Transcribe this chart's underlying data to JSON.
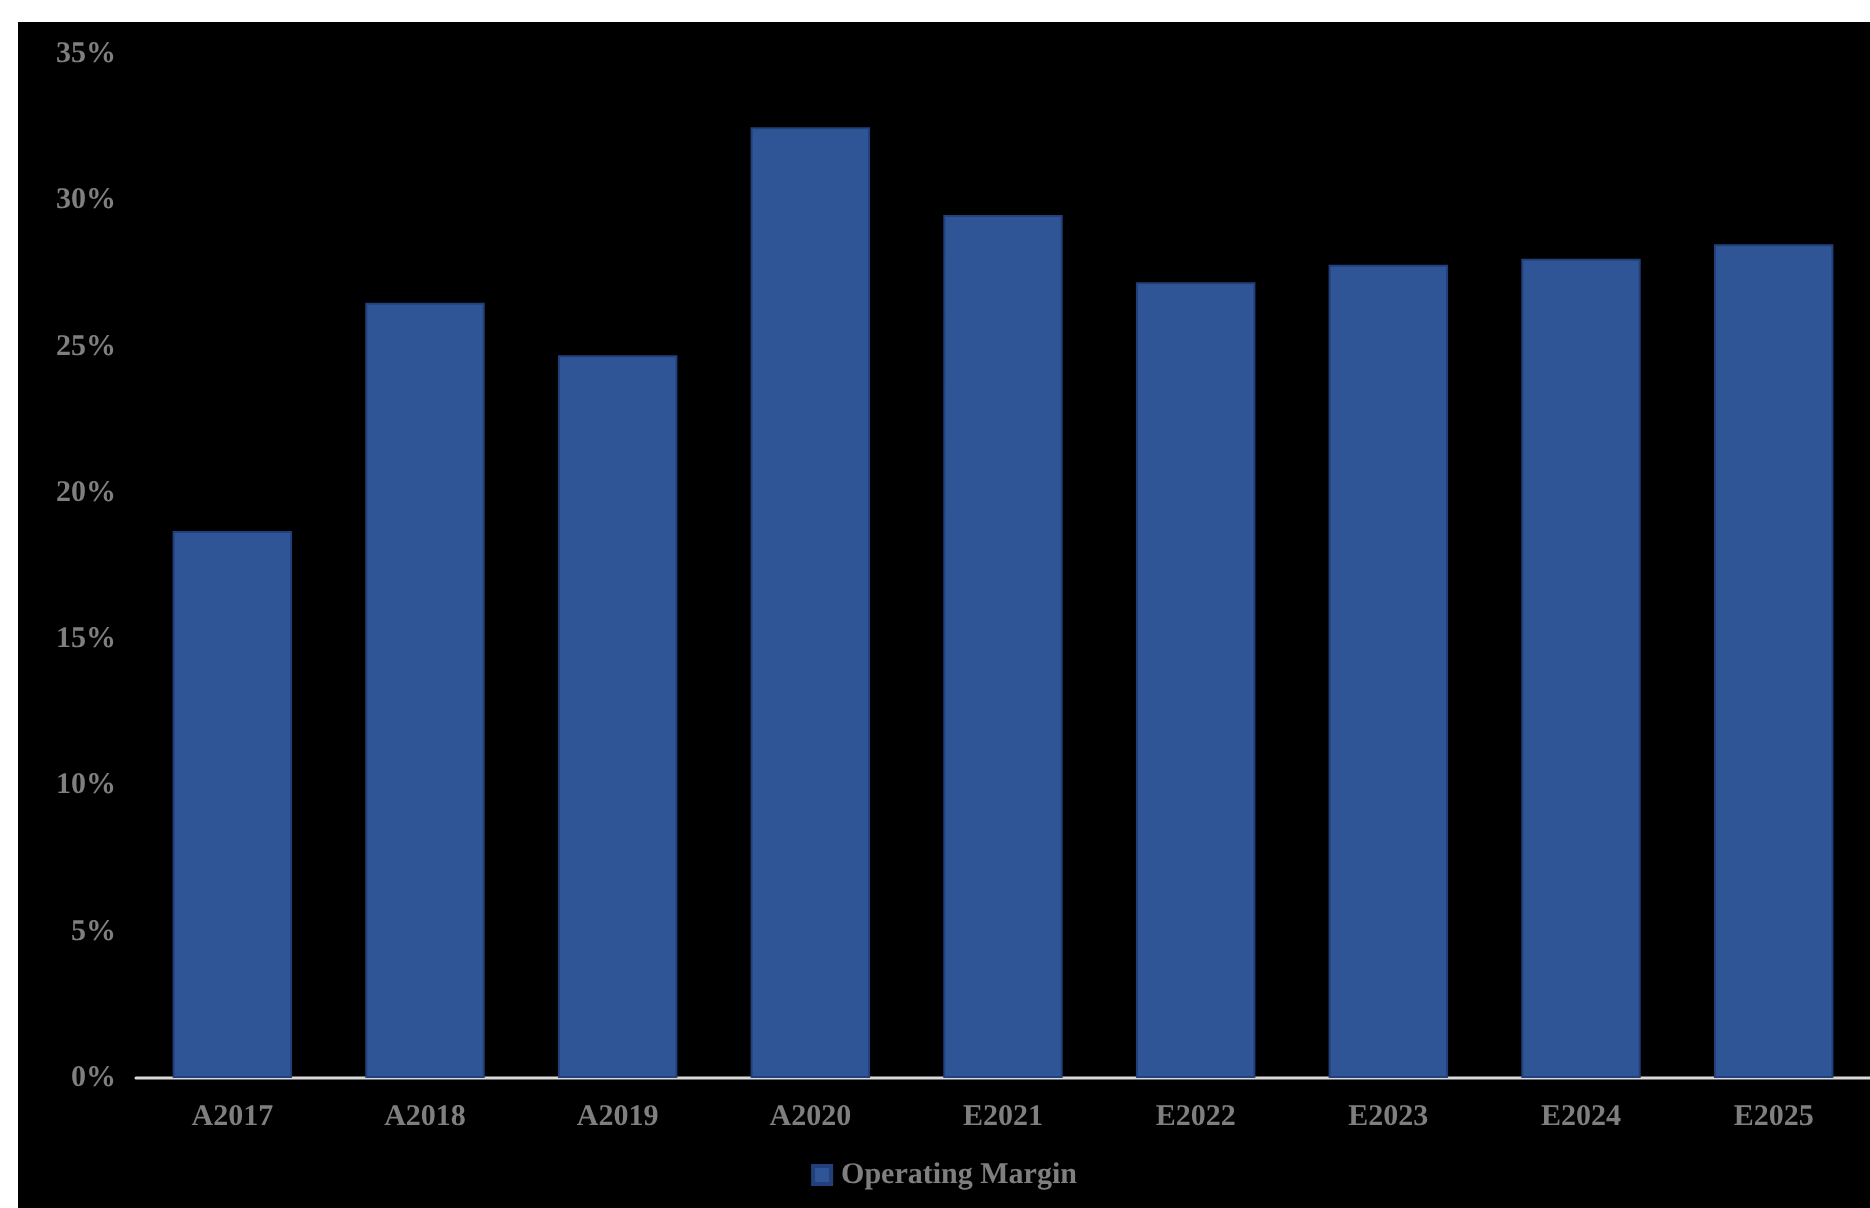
{
  "chart_data": {
    "type": "bar",
    "categories": [
      "A2017",
      "A2018",
      "A2019",
      "A2020",
      "E2021",
      "E2022",
      "E2023",
      "E2024",
      "E2025"
    ],
    "series": [
      {
        "name": "Operating Margin",
        "color": "#2f5597",
        "values": [
          18.7,
          26.5,
          24.7,
          32.5,
          29.5,
          27.2,
          27.8,
          28.0,
          28.5
        ]
      }
    ],
    "ylim": [
      0,
      35
    ],
    "yticks": [
      {
        "value": 0,
        "label": "0%"
      },
      {
        "value": 5,
        "label": "5%"
      },
      {
        "value": 10,
        "label": "10%"
      },
      {
        "value": 15,
        "label": "15%"
      },
      {
        "value": 20,
        "label": "20%"
      },
      {
        "value": 25,
        "label": "25%"
      },
      {
        "value": 30,
        "label": "30%"
      },
      {
        "value": 35,
        "label": "35%"
      }
    ],
    "grid": false,
    "legend": "bottom"
  }
}
